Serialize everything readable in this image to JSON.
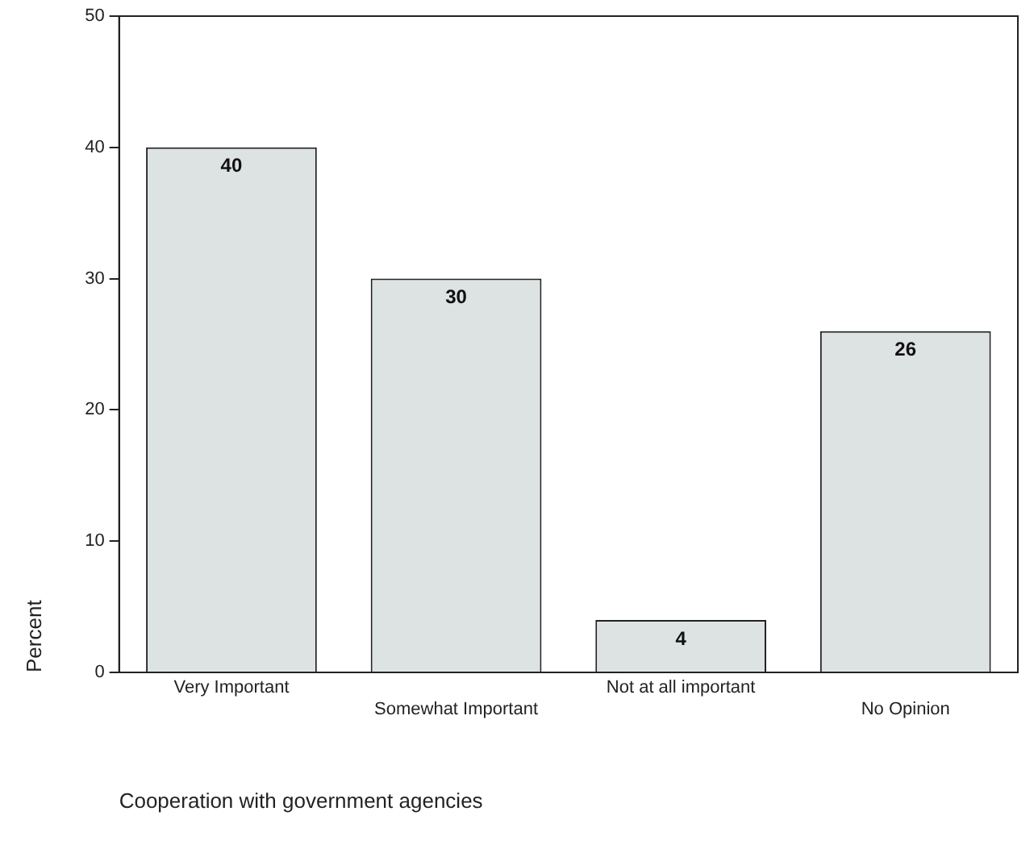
{
  "chart_data": {
    "type": "bar",
    "xlabel": "Cooperation with government agencies",
    "ylabel": "Percent",
    "categories": [
      "Very Important",
      "Somewhat Important",
      "Not at all important",
      "No Opinion"
    ],
    "values": [
      40,
      30,
      4,
      26
    ],
    "color": "#dde2e2",
    "data_labels": true,
    "ylim": [
      0,
      50
    ],
    "yticks": [
      0,
      10,
      20,
      30,
      40,
      50
    ],
    "grid": false,
    "legend": false
  }
}
